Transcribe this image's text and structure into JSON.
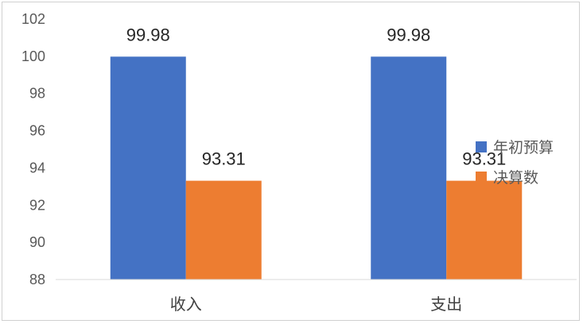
{
  "chart_data": {
    "type": "bar",
    "categories": [
      "收入",
      "支出"
    ],
    "series": [
      {
        "name": "年初预算",
        "values": [
          99.98,
          99.98
        ],
        "color": "#4472C4"
      },
      {
        "name": "决算数",
        "values": [
          93.31,
          93.31
        ],
        "color": "#ED7D31"
      }
    ],
    "data_labels": [
      [
        "99.98",
        "99.98"
      ],
      [
        "93.31",
        "93.31"
      ]
    ],
    "title": "",
    "xlabel": "",
    "ylabel": "",
    "ylim": [
      88,
      102
    ],
    "yticks": [
      "88",
      "90",
      "92",
      "94",
      "96",
      "98",
      "100",
      "102"
    ],
    "grid": false,
    "legend": "right"
  }
}
